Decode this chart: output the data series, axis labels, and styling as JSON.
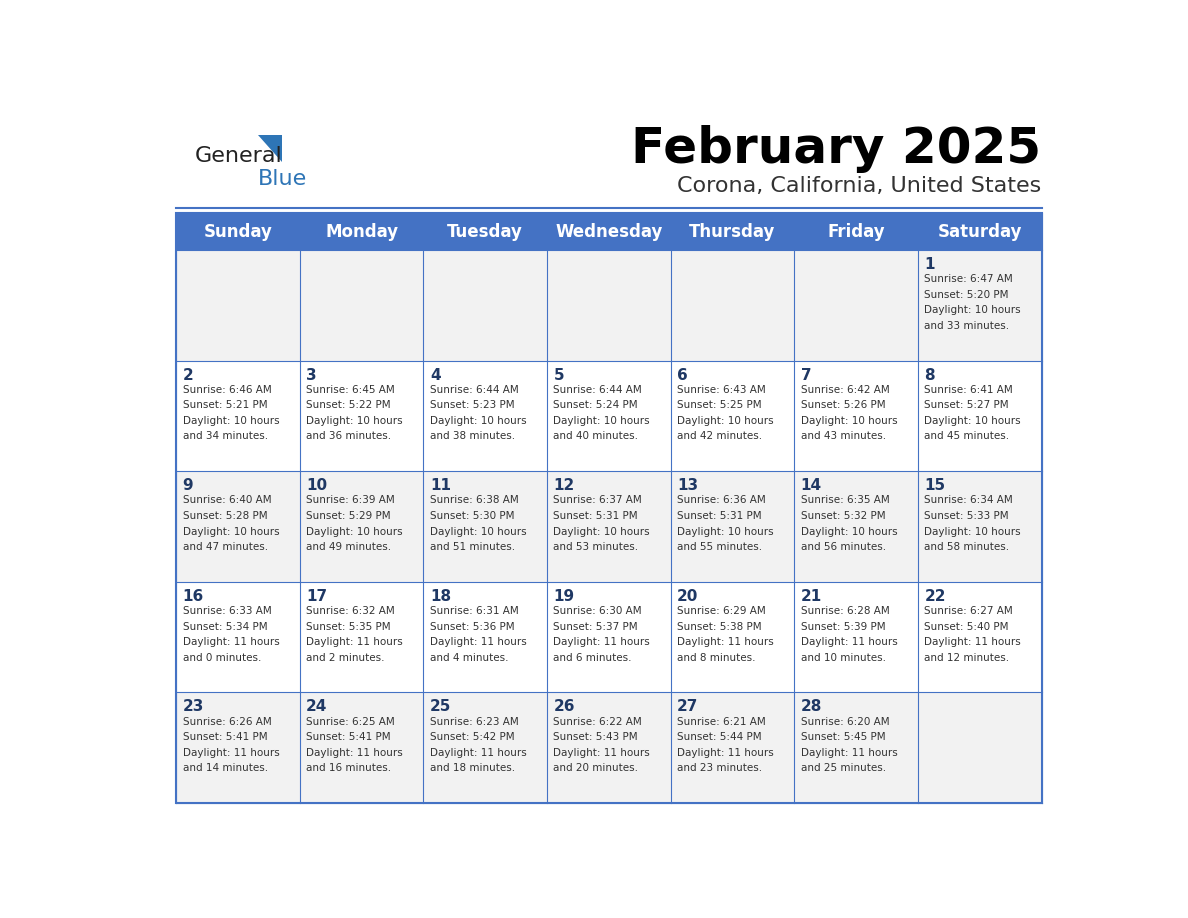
{
  "title": "February 2025",
  "subtitle": "Corona, California, United States",
  "header_bg": "#4472C4",
  "header_text_color": "#FFFFFF",
  "cell_bg_light": "#F2F2F2",
  "cell_bg_white": "#FFFFFF",
  "day_headers": [
    "Sunday",
    "Monday",
    "Tuesday",
    "Wednesday",
    "Thursday",
    "Friday",
    "Saturday"
  ],
  "days": [
    {
      "day": 1,
      "col": 6,
      "row": 0,
      "sunrise": "6:47 AM",
      "sunset": "5:20 PM",
      "daylight": "10 hours and 33 minutes."
    },
    {
      "day": 2,
      "col": 0,
      "row": 1,
      "sunrise": "6:46 AM",
      "sunset": "5:21 PM",
      "daylight": "10 hours and 34 minutes."
    },
    {
      "day": 3,
      "col": 1,
      "row": 1,
      "sunrise": "6:45 AM",
      "sunset": "5:22 PM",
      "daylight": "10 hours and 36 minutes."
    },
    {
      "day": 4,
      "col": 2,
      "row": 1,
      "sunrise": "6:44 AM",
      "sunset": "5:23 PM",
      "daylight": "10 hours and 38 minutes."
    },
    {
      "day": 5,
      "col": 3,
      "row": 1,
      "sunrise": "6:44 AM",
      "sunset": "5:24 PM",
      "daylight": "10 hours and 40 minutes."
    },
    {
      "day": 6,
      "col": 4,
      "row": 1,
      "sunrise": "6:43 AM",
      "sunset": "5:25 PM",
      "daylight": "10 hours and 42 minutes."
    },
    {
      "day": 7,
      "col": 5,
      "row": 1,
      "sunrise": "6:42 AM",
      "sunset": "5:26 PM",
      "daylight": "10 hours and 43 minutes."
    },
    {
      "day": 8,
      "col": 6,
      "row": 1,
      "sunrise": "6:41 AM",
      "sunset": "5:27 PM",
      "daylight": "10 hours and 45 minutes."
    },
    {
      "day": 9,
      "col": 0,
      "row": 2,
      "sunrise": "6:40 AM",
      "sunset": "5:28 PM",
      "daylight": "10 hours and 47 minutes."
    },
    {
      "day": 10,
      "col": 1,
      "row": 2,
      "sunrise": "6:39 AM",
      "sunset": "5:29 PM",
      "daylight": "10 hours and 49 minutes."
    },
    {
      "day": 11,
      "col": 2,
      "row": 2,
      "sunrise": "6:38 AM",
      "sunset": "5:30 PM",
      "daylight": "10 hours and 51 minutes."
    },
    {
      "day": 12,
      "col": 3,
      "row": 2,
      "sunrise": "6:37 AM",
      "sunset": "5:31 PM",
      "daylight": "10 hours and 53 minutes."
    },
    {
      "day": 13,
      "col": 4,
      "row": 2,
      "sunrise": "6:36 AM",
      "sunset": "5:31 PM",
      "daylight": "10 hours and 55 minutes."
    },
    {
      "day": 14,
      "col": 5,
      "row": 2,
      "sunrise": "6:35 AM",
      "sunset": "5:32 PM",
      "daylight": "10 hours and 56 minutes."
    },
    {
      "day": 15,
      "col": 6,
      "row": 2,
      "sunrise": "6:34 AM",
      "sunset": "5:33 PM",
      "daylight": "10 hours and 58 minutes."
    },
    {
      "day": 16,
      "col": 0,
      "row": 3,
      "sunrise": "6:33 AM",
      "sunset": "5:34 PM",
      "daylight": "11 hours and 0 minutes."
    },
    {
      "day": 17,
      "col": 1,
      "row": 3,
      "sunrise": "6:32 AM",
      "sunset": "5:35 PM",
      "daylight": "11 hours and 2 minutes."
    },
    {
      "day": 18,
      "col": 2,
      "row": 3,
      "sunrise": "6:31 AM",
      "sunset": "5:36 PM",
      "daylight": "11 hours and 4 minutes."
    },
    {
      "day": 19,
      "col": 3,
      "row": 3,
      "sunrise": "6:30 AM",
      "sunset": "5:37 PM",
      "daylight": "11 hours and 6 minutes."
    },
    {
      "day": 20,
      "col": 4,
      "row": 3,
      "sunrise": "6:29 AM",
      "sunset": "5:38 PM",
      "daylight": "11 hours and 8 minutes."
    },
    {
      "day": 21,
      "col": 5,
      "row": 3,
      "sunrise": "6:28 AM",
      "sunset": "5:39 PM",
      "daylight": "11 hours and 10 minutes."
    },
    {
      "day": 22,
      "col": 6,
      "row": 3,
      "sunrise": "6:27 AM",
      "sunset": "5:40 PM",
      "daylight": "11 hours and 12 minutes."
    },
    {
      "day": 23,
      "col": 0,
      "row": 4,
      "sunrise": "6:26 AM",
      "sunset": "5:41 PM",
      "daylight": "11 hours and 14 minutes."
    },
    {
      "day": 24,
      "col": 1,
      "row": 4,
      "sunrise": "6:25 AM",
      "sunset": "5:41 PM",
      "daylight": "11 hours and 16 minutes."
    },
    {
      "day": 25,
      "col": 2,
      "row": 4,
      "sunrise": "6:23 AM",
      "sunset": "5:42 PM",
      "daylight": "11 hours and 18 minutes."
    },
    {
      "day": 26,
      "col": 3,
      "row": 4,
      "sunrise": "6:22 AM",
      "sunset": "5:43 PM",
      "daylight": "11 hours and 20 minutes."
    },
    {
      "day": 27,
      "col": 4,
      "row": 4,
      "sunrise": "6:21 AM",
      "sunset": "5:44 PM",
      "daylight": "11 hours and 23 minutes."
    },
    {
      "day": 28,
      "col": 5,
      "row": 4,
      "sunrise": "6:20 AM",
      "sunset": "5:45 PM",
      "daylight": "11 hours and 25 minutes."
    }
  ],
  "num_rows": 5,
  "general_blue_color": "#2E75B6",
  "logo_general_color": "#222222",
  "border_color": "#4472C4",
  "cell_text_color": "#333333",
  "day_number_color": "#1F3864"
}
